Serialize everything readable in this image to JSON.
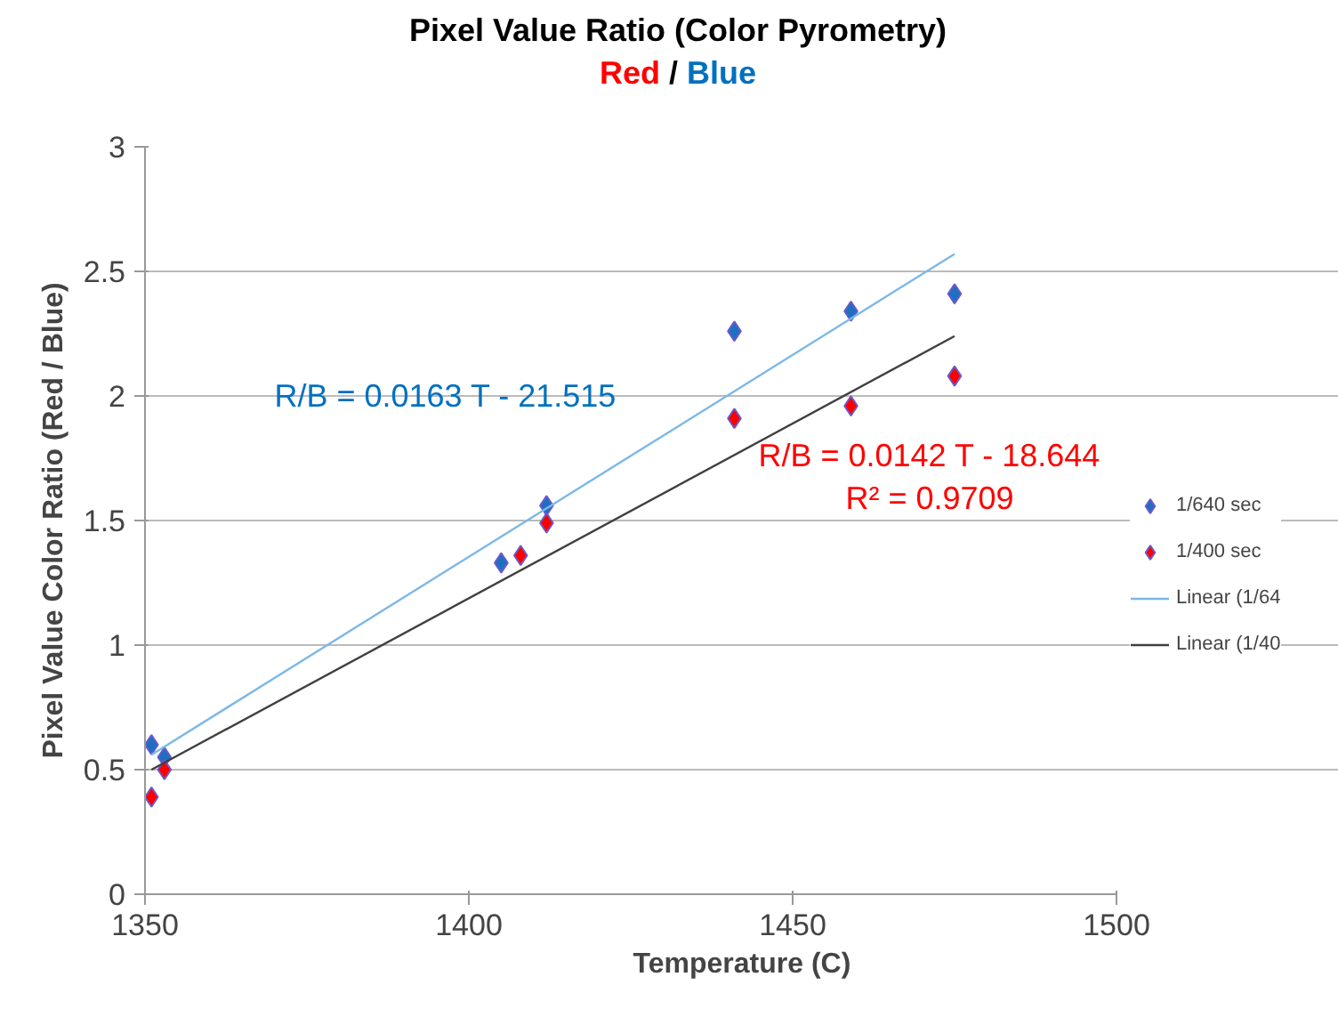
{
  "chart_data": {
    "type": "scatter",
    "title": "Pixel Value Ratio (Color Pyrometry)",
    "subtitle": "Red / Blue",
    "xlabel": "Temperature (C)",
    "ylabel": "Pixel Value Color Ratio (Red / Blue)",
    "series": [
      {
        "name": "1/640 sec",
        "color": "#1f6fc0",
        "marker": "diamond",
        "x": [
          1351,
          1353,
          1405,
          1412,
          1441,
          1459,
          1475
        ],
        "values": [
          0.6,
          0.55,
          1.33,
          1.56,
          2.26,
          2.34,
          2.41
        ]
      },
      {
        "name": "1/400 sec",
        "color": "#ff0000",
        "marker": "diamond",
        "x": [
          1351,
          1353,
          1408,
          1412,
          1441,
          1459,
          1475
        ],
        "values": [
          0.39,
          0.5,
          1.36,
          1.49,
          1.91,
          1.96,
          2.08
        ]
      },
      {
        "name": "Linear (1/64",
        "type": "line",
        "color": "#7ab8e8",
        "x": [
          1351,
          1475
        ],
        "values": [
          0.56,
          2.57
        ]
      },
      {
        "name": "Linear (1/40",
        "type": "line",
        "color": "#404040",
        "x": [
          1351,
          1475
        ],
        "values": [
          0.5,
          2.24
        ]
      }
    ],
    "annotations": [
      "R/B = 0.0163 T - 21.515",
      "R/B = 0.0142 T - 18.644\nR² = 0.9709"
    ],
    "xlim": [
      1350,
      1500
    ],
    "xticks": [
      1350,
      1400,
      1450,
      1500
    ],
    "ylim": [
      0,
      3
    ],
    "yticks": [
      0,
      0.5,
      1,
      1.5,
      2,
      2.5,
      3
    ],
    "grid": "y",
    "legend": "right",
    "line_style": "solid"
  }
}
